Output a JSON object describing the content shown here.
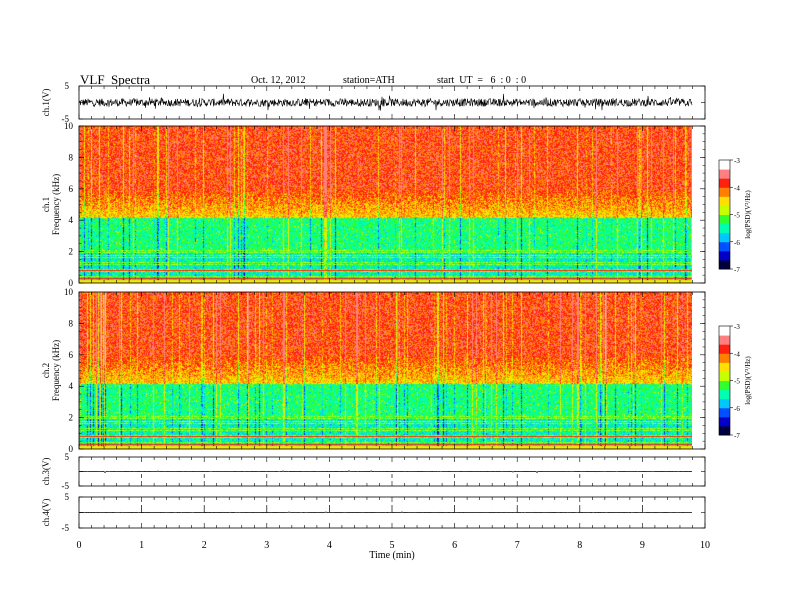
{
  "header": {
    "title": "VLF  Spectra",
    "date": "Oct. 12, 2012",
    "station": "station=ATH",
    "start": "start  UT  =   6  : 0  : 0"
  },
  "colors": {
    "spectrum": [
      "#000040",
      "#0000c8",
      "#0050ff",
      "#00c8ff",
      "#00ffb0",
      "#30ff30",
      "#c8ff00",
      "#ffe000",
      "#ff8000",
      "#ff2010",
      "#ff8080",
      "#ffffff"
    ],
    "trace": "#000000"
  },
  "chart_data": [
    {
      "type": "line",
      "ylabel": "ch.1(V)",
      "ylim": [
        -5,
        5
      ],
      "yticks": [
        "5",
        "-5"
      ],
      "description_values": "dense broadband noise trace, amplitude mostly within about ±2 V"
    },
    {
      "type": "heatmap",
      "ylabel_channel": "ch.1",
      "ylabel": "Frequency  (kHz)",
      "ylim": [
        0,
        10
      ],
      "yticks": [
        "0",
        "2",
        "4",
        "6",
        "8",
        "10"
      ],
      "colorbar": {
        "label": "log(PSD)(V²/Hz)",
        "range": [
          -7,
          -3
        ],
        "ticks": [
          "-3",
          "-4",
          "-5",
          "-6",
          "-7"
        ]
      }
    },
    {
      "type": "heatmap",
      "ylabel_channel": "ch.2",
      "ylabel": "Frequency  (kHz)",
      "ylim": [
        0,
        10
      ],
      "yticks": [
        "0",
        "2",
        "4",
        "6",
        "8",
        "10"
      ],
      "colorbar": {
        "label": "log(PSD)(V²/Hz)",
        "range": [
          -7,
          -3
        ],
        "ticks": [
          "-3",
          "-4",
          "-5",
          "-6",
          "-7"
        ]
      }
    },
    {
      "type": "line",
      "ylabel": "ch.3(V)",
      "ylim": [
        -5,
        5
      ],
      "yticks": [
        "5",
        "-5"
      ]
    },
    {
      "type": "line",
      "ylabel": "ch.4(V)",
      "ylim": [
        -5,
        5
      ],
      "yticks": [
        "5",
        "-5"
      ]
    }
  ],
  "x_axis": {
    "label": "Time  (min)",
    "range": [
      0,
      10
    ],
    "ticks": [
      "0",
      "1",
      "2",
      "3",
      "4",
      "5",
      "6",
      "7",
      "8",
      "9",
      "10"
    ],
    "data_end": 9.8
  }
}
